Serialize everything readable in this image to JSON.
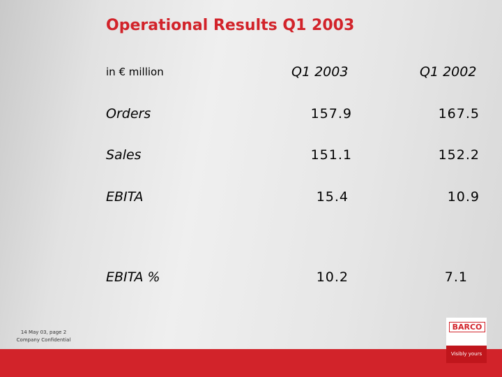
{
  "header": {
    "title": "Operational Results Q1 2003"
  },
  "table": {
    "header": [
      "in € million",
      "Q1 2003",
      "Q1 2002"
    ],
    "rows": [
      [
        "Orders",
        "157.9",
        "167.5"
      ],
      [
        "Sales",
        "151.1",
        "152.2"
      ],
      [
        "EBITA",
        "15.4",
        "10.9"
      ],
      [
        "EBITA %",
        "10.2",
        "7.1"
      ]
    ]
  },
  "footer": {
    "date": "14 May 03, page 2",
    "confidentiality": "Company Confidential"
  },
  "logo": {
    "name": "BARCO",
    "tagline": "Visibly yours"
  }
}
